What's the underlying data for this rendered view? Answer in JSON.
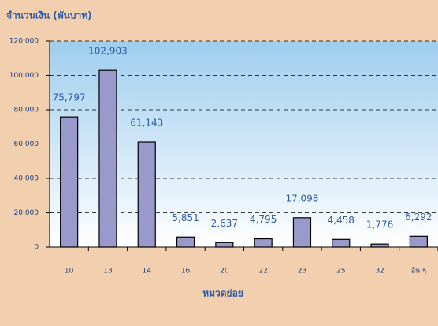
{
  "chart_data": {
    "type": "bar",
    "y_axis_label": "จำนวนเงิน (พันบาท)",
    "x_axis_label": "หมวดย่อย",
    "categories": [
      "10",
      "13",
      "14",
      "16",
      "20",
      "22",
      "23",
      "25",
      "32",
      "อื่น ๆ"
    ],
    "values": [
      75797,
      102903,
      61143,
      5851,
      2637,
      4795,
      17098,
      4458,
      1776,
      6292
    ],
    "value_labels": [
      "75,797",
      "102,903",
      "61,143",
      "5,851",
      "2,637",
      "4,795",
      "17,098",
      "4,458",
      "1,776",
      "6,292"
    ],
    "color": "#9999cc",
    "ylim": [
      0,
      120000
    ],
    "yticks": [
      0,
      {
        "value": 20000,
        "label": "20,000"
      },
      {
        "value": 40000,
        "label": "40,000"
      },
      {
        "value": 60000,
        "label": "60,000"
      },
      {
        "value": 80000,
        "label": "80,000"
      },
      {
        "value": 100000,
        "label": "100,000"
      },
      {
        "value": 120000,
        "label": "120,000"
      }
    ],
    "grid": true
  }
}
